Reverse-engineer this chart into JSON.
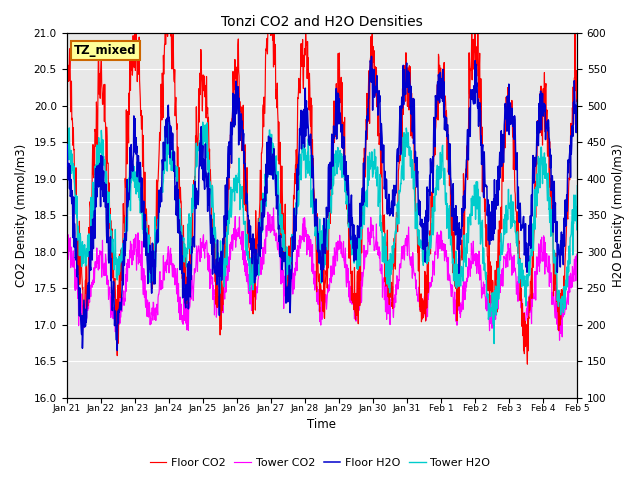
{
  "title": "Tonzi CO2 and H2O Densities",
  "xlabel": "Time",
  "ylabel_left": "CO2 Density (mmol/m3)",
  "ylabel_right": "H2O Density (mmol/m3)",
  "co2_ylim": [
    16.0,
    21.0
  ],
  "h2o_ylim": [
    100,
    600
  ],
  "co2_yticks": [
    16.0,
    16.5,
    17.0,
    17.5,
    18.0,
    18.5,
    19.0,
    19.5,
    20.0,
    20.5,
    21.0
  ],
  "h2o_yticks": [
    100,
    150,
    200,
    250,
    300,
    350,
    400,
    450,
    500,
    550,
    600
  ],
  "annotation_text": "TZ_mixed",
  "annotation_bg": "#FFFF99",
  "annotation_border": "#CC6600",
  "background_color": "#E8E8E8",
  "line_colors": {
    "floor_co2": "#FF0000",
    "tower_co2": "#FF00FF",
    "floor_h2o": "#0000CC",
    "tower_h2o": "#00CCCC"
  },
  "legend_labels": [
    "Floor CO2",
    "Tower CO2",
    "Floor H2O",
    "Tower H2O"
  ],
  "n_points": 1440,
  "seed": 42
}
